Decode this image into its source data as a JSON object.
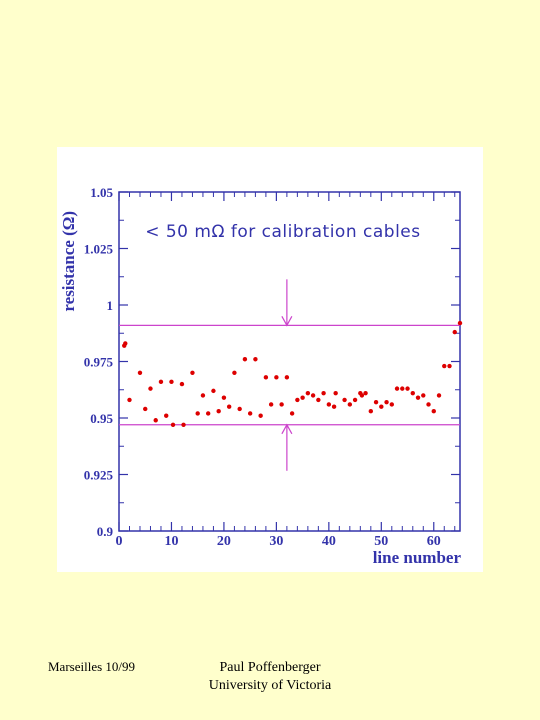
{
  "chart_data": {
    "type": "scatter",
    "xlabel": "line number",
    "ylabel": "resistance (Ω)",
    "xlim": [
      0,
      65
    ],
    "ylim": [
      0.9,
      1.05
    ],
    "x_ticks": [
      0,
      10,
      20,
      30,
      40,
      50,
      60
    ],
    "y_ticks": [
      {
        "value": 0.9,
        "label": "0.9"
      },
      {
        "value": 0.925,
        "label": "0.925"
      },
      {
        "value": 0.95,
        "label": "0.95"
      },
      {
        "value": 0.975,
        "label": "0.975"
      },
      {
        "value": 1.0,
        "label": "1"
      },
      {
        "value": 1.025,
        "label": "1.025"
      },
      {
        "value": 1.05,
        "label": "1.05"
      }
    ],
    "annotation": "< 50 mΩ for calibration cables",
    "band": {
      "lower": 0.947,
      "upper": 0.991,
      "arrow_x": 32
    },
    "colors": {
      "points": "#dd0000",
      "band": "#cc44cc",
      "axis": "#3333aa",
      "label": "#3333aa"
    },
    "points": [
      [
        1,
        0.982
      ],
      [
        1.2,
        0.983
      ],
      [
        2,
        0.958
      ],
      [
        4,
        0.97
      ],
      [
        5,
        0.954
      ],
      [
        6,
        0.963
      ],
      [
        7,
        0.949
      ],
      [
        8,
        0.966
      ],
      [
        9,
        0.951
      ],
      [
        10,
        0.966
      ],
      [
        10.3,
        0.947
      ],
      [
        12,
        0.965
      ],
      [
        12.3,
        0.947
      ],
      [
        14,
        0.97
      ],
      [
        15,
        0.952
      ],
      [
        16,
        0.96
      ],
      [
        17,
        0.952
      ],
      [
        18,
        0.962
      ],
      [
        19,
        0.953
      ],
      [
        20,
        0.959
      ],
      [
        21,
        0.955
      ],
      [
        22,
        0.97
      ],
      [
        23,
        0.954
      ],
      [
        24,
        0.976
      ],
      [
        25,
        0.952
      ],
      [
        26,
        0.976
      ],
      [
        27,
        0.951
      ],
      [
        28,
        0.968
      ],
      [
        29,
        0.956
      ],
      [
        30,
        0.968
      ],
      [
        31,
        0.956
      ],
      [
        32,
        0.968
      ],
      [
        33,
        0.952
      ],
      [
        34,
        0.958
      ],
      [
        35,
        0.959
      ],
      [
        36,
        0.961
      ],
      [
        37,
        0.96
      ],
      [
        38,
        0.958
      ],
      [
        39,
        0.961
      ],
      [
        40,
        0.956
      ],
      [
        41,
        0.955
      ],
      [
        41.3,
        0.961
      ],
      [
        43,
        0.958
      ],
      [
        44,
        0.956
      ],
      [
        45,
        0.958
      ],
      [
        46,
        0.961
      ],
      [
        46.3,
        0.96
      ],
      [
        47,
        0.961
      ],
      [
        48,
        0.953
      ],
      [
        49,
        0.957
      ],
      [
        50,
        0.955
      ],
      [
        51,
        0.957
      ],
      [
        52,
        0.956
      ],
      [
        53,
        0.963
      ],
      [
        54,
        0.963
      ],
      [
        55,
        0.963
      ],
      [
        56,
        0.961
      ],
      [
        57,
        0.959
      ],
      [
        58,
        0.96
      ],
      [
        59,
        0.956
      ],
      [
        60,
        0.953
      ],
      [
        61,
        0.96
      ],
      [
        62,
        0.973
      ],
      [
        63,
        0.973
      ],
      [
        64,
        0.988
      ],
      [
        65,
        0.992
      ]
    ]
  },
  "footer": {
    "left": "Marseilles 10/99",
    "author": "Paul Poffenberger",
    "affiliation": "University of Victoria"
  }
}
